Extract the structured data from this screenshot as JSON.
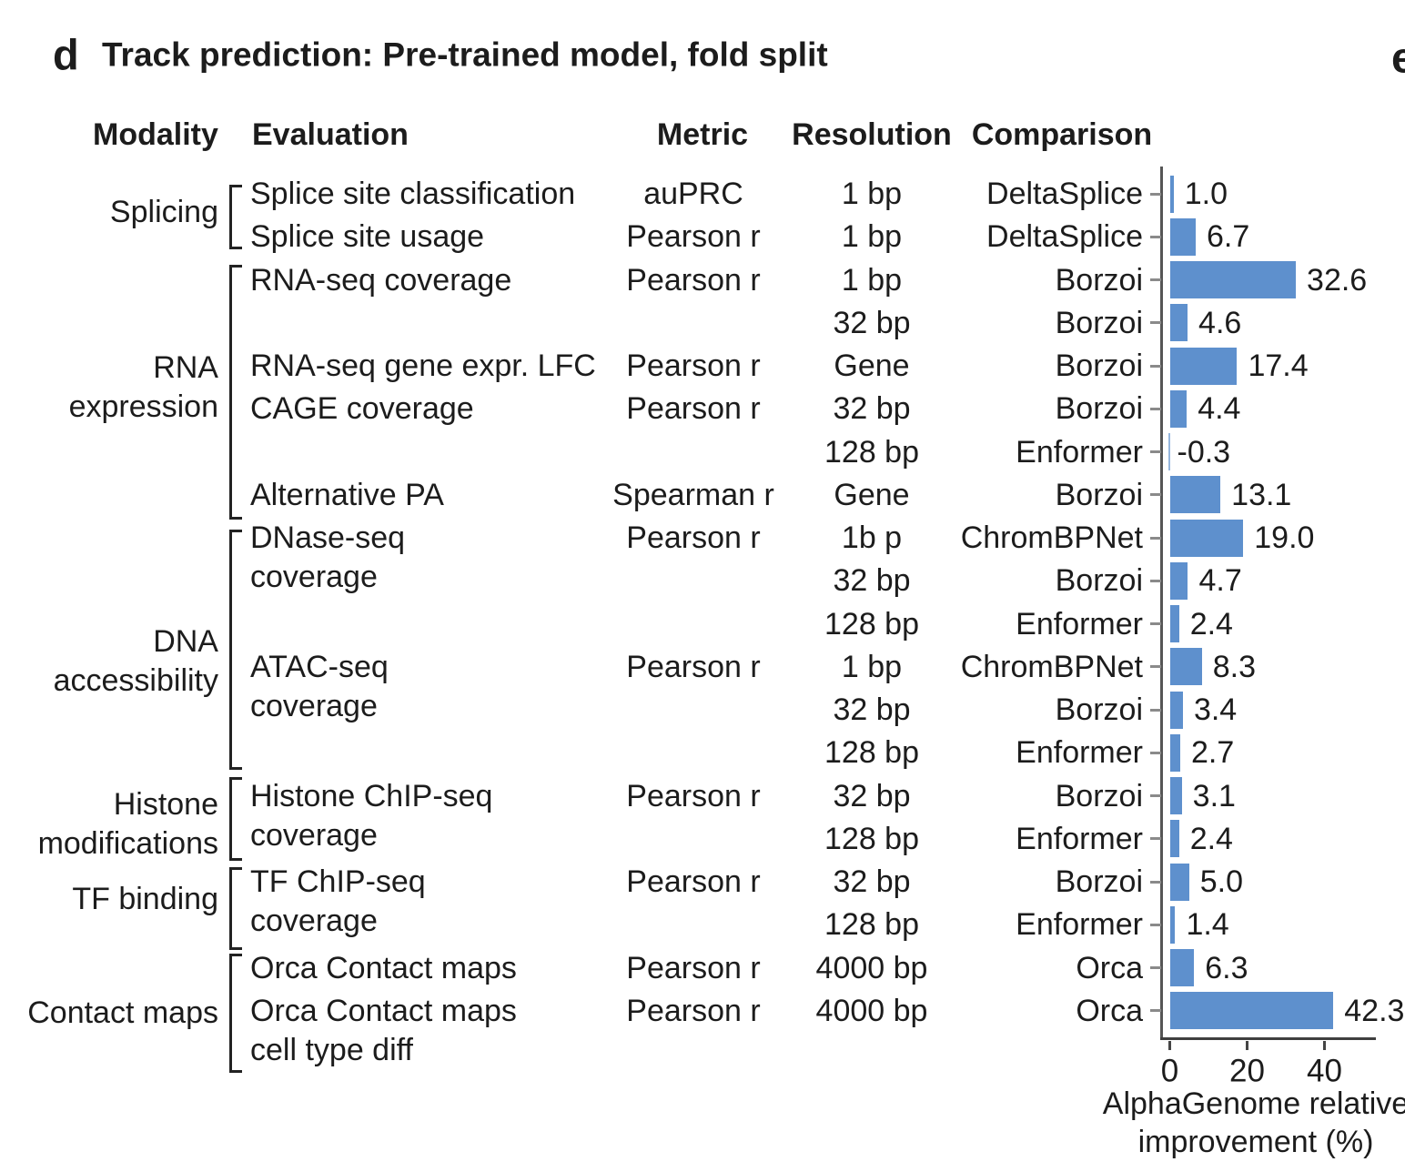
{
  "panel": {
    "label": "d",
    "title": "Track prediction: Pre-trained model, fold split",
    "next_panel_label": "e"
  },
  "columns": {
    "modality": "Modality",
    "evaluation": "Evaluation",
    "metric": "Metric",
    "resolution": "Resolution",
    "comparison": "Comparison"
  },
  "chart_data": {
    "type": "bar",
    "orientation": "horizontal",
    "title": "Track prediction: Pre-trained model, fold split",
    "xlabel_lines": [
      "AlphaGenome relative",
      "improvement (%)"
    ],
    "x_ticks": [
      0,
      20,
      40
    ],
    "xlim": [
      -2.5,
      53
    ],
    "bar_color": "#5e90cd",
    "grid": false,
    "rows": [
      {
        "evaluation": [
          "Splice site classification"
        ],
        "metric": "auPRC",
        "resolution": "1 bp",
        "comparison": "DeltaSplice",
        "value": 1.0
      },
      {
        "evaluation": [
          "Splice site usage"
        ],
        "metric": "Pearson r",
        "resolution": "1 bp",
        "comparison": "DeltaSplice",
        "value": 6.7
      },
      {
        "evaluation": [
          "RNA-seq coverage"
        ],
        "metric": "Pearson r",
        "resolution": "1 bp",
        "comparison": "Borzoi",
        "value": 32.6
      },
      {
        "evaluation": [],
        "metric": "",
        "resolution": "32 bp",
        "comparison": "Borzoi",
        "value": 4.6
      },
      {
        "evaluation": [
          "RNA-seq gene expr. LFC"
        ],
        "metric": "Pearson r",
        "resolution": "Gene",
        "comparison": "Borzoi",
        "value": 17.4
      },
      {
        "evaluation": [
          "CAGE coverage"
        ],
        "metric": "Pearson r",
        "resolution": "32 bp",
        "comparison": "Borzoi",
        "value": 4.4
      },
      {
        "evaluation": [],
        "metric": "",
        "resolution": "128 bp",
        "comparison": "Enformer",
        "value": -0.3
      },
      {
        "evaluation": [
          "Alternative PA"
        ],
        "metric": "Spearman r",
        "resolution": "Gene",
        "comparison": "Borzoi",
        "value": 13.1
      },
      {
        "evaluation": [
          "DNase-seq",
          "coverage"
        ],
        "metric": "Pearson r",
        "resolution": "1b p",
        "comparison": "ChromBPNet",
        "value": 19.0
      },
      {
        "evaluation": [],
        "metric": "",
        "resolution": "32 bp",
        "comparison": "Borzoi",
        "value": 4.7
      },
      {
        "evaluation": [],
        "metric": "",
        "resolution": "128 bp",
        "comparison": "Enformer",
        "value": 2.4
      },
      {
        "evaluation": [
          "ATAC-seq",
          "coverage"
        ],
        "metric": "Pearson r",
        "resolution": "1 bp",
        "comparison": "ChromBPNet",
        "value": 8.3
      },
      {
        "evaluation": [],
        "metric": "",
        "resolution": "32 bp",
        "comparison": "Borzoi",
        "value": 3.4
      },
      {
        "evaluation": [],
        "metric": "",
        "resolution": "128 bp",
        "comparison": "Enformer",
        "value": 2.7
      },
      {
        "evaluation": [
          "Histone ChIP-seq",
          "coverage"
        ],
        "metric": "Pearson r",
        "resolution": "32 bp",
        "comparison": "Borzoi",
        "value": 3.1
      },
      {
        "evaluation": [],
        "metric": "",
        "resolution": "128 bp",
        "comparison": "Enformer",
        "value": 2.4
      },
      {
        "evaluation": [
          "TF ChIP-seq",
          "coverage"
        ],
        "metric": "Pearson r",
        "resolution": "32 bp",
        "comparison": "Borzoi",
        "value": 5.0
      },
      {
        "evaluation": [],
        "metric": "",
        "resolution": "128 bp",
        "comparison": "Enformer",
        "value": 1.4
      },
      {
        "evaluation": [
          "Orca Contact maps"
        ],
        "metric": "Pearson r",
        "resolution": "4000 bp",
        "comparison": "Orca",
        "value": 6.3
      },
      {
        "evaluation": [
          "Orca Contact maps",
          "cell type diff"
        ],
        "metric": "Pearson r",
        "resolution": "4000 bp",
        "comparison": "Orca",
        "value": 42.3
      }
    ],
    "groups": [
      {
        "label_lines": [
          "Splicing"
        ],
        "row_start": 0,
        "row_end": 1
      },
      {
        "label_lines": [
          "RNA",
          "expression"
        ],
        "row_start": 2,
        "row_end": 7
      },
      {
        "label_lines": [
          "DNA",
          "accessibility"
        ],
        "row_start": 8,
        "row_end": 13
      },
      {
        "label_lines": [
          "Histone",
          "modifications"
        ],
        "row_start": 14,
        "row_end": 15
      },
      {
        "label_lines": [
          "TF binding"
        ],
        "row_start": 16,
        "row_end": 17
      },
      {
        "label_lines": [
          "Contact maps"
        ],
        "row_start": 18,
        "row_end": 19
      }
    ]
  }
}
